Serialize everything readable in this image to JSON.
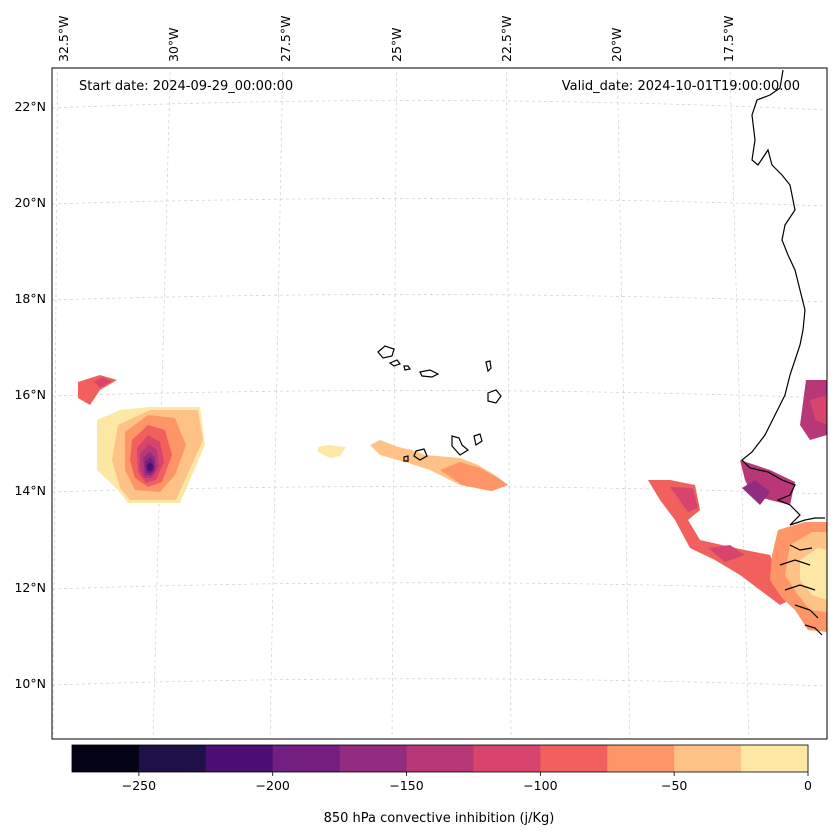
{
  "map": {
    "start_date": "Start date: 2024-09-29_00:00:00",
    "valid_date": "Valid_date: 2024-10-01T19:00:00.00",
    "lon_ticks": [
      "32.5°W",
      "30°W",
      "27.5°W",
      "25°W",
      "22.5°W",
      "20°W",
      "17.5°W"
    ],
    "lat_ticks": [
      "22°N",
      "20°N",
      "18°N",
      "16°N",
      "14°N",
      "12°N",
      "10°N"
    ],
    "gridlines": true,
    "coastline_color": "#000000"
  },
  "colorbar": {
    "label": "850 hPa convective inhibition (j/Kg)",
    "tick_labels": [
      "−250",
      "−200",
      "−150",
      "−100",
      "−50",
      "0"
    ],
    "levels": [
      -275,
      -250,
      -225,
      -200,
      -175,
      -150,
      -125,
      -100,
      -75,
      -50,
      -25,
      0
    ],
    "colors": [
      "#050416",
      "#1f1147",
      "#4b0f73",
      "#721f81",
      "#932b80",
      "#b73779",
      "#d8456c",
      "#f1605d",
      "#fd9567",
      "#fec287",
      "#fde7a5"
    ]
  },
  "colors": {
    "cmap": "magma"
  }
}
